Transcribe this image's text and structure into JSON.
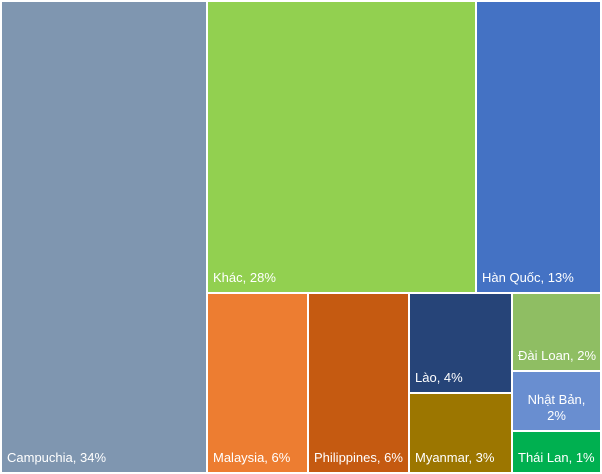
{
  "chart_data": {
    "type": "treemap",
    "title": "",
    "items": [
      {
        "name": "Campuchia",
        "label_text": "Campuchia, 34%",
        "label_lines": [
          "Campuchia, 34%"
        ],
        "value": 34,
        "color": "#7f96b0"
      },
      {
        "name": "Khác",
        "label_text": "Khác, 28%",
        "label_lines": [
          "Khác, 28%"
        ],
        "value": 28,
        "color": "#92d050"
      },
      {
        "name": "Hàn Quốc",
        "label_text": "Hàn Quốc, 13%",
        "label_lines": [
          "Hàn Quốc, 13%"
        ],
        "value": 13,
        "color": "#4472c4"
      },
      {
        "name": "Malaysia",
        "label_text": "Malaysia, 6%",
        "label_lines": [
          "Malaysia, 6%"
        ],
        "value": 6,
        "color": "#ed7d31"
      },
      {
        "name": "Philippines",
        "label_text": "Philippines, 6%",
        "label_lines": [
          "Philippines, 6%"
        ],
        "value": 6,
        "color": "#c55a11"
      },
      {
        "name": "Lào",
        "label_text": "Lào, 4%",
        "label_lines": [
          "Lào, 4%"
        ],
        "value": 4,
        "color": "#264478"
      },
      {
        "name": "Myanmar",
        "label_text": "Myanmar, 3%",
        "label_lines": [
          "Myanmar, 3%"
        ],
        "value": 3,
        "color": "#9c7600"
      },
      {
        "name": "Đài Loan",
        "label_text": "Đài Loan, 2%",
        "label_lines": [
          "Đài Loan, 2%"
        ],
        "value": 2,
        "color": "#8fbe63"
      },
      {
        "name": "Nhật Bản",
        "label_text": "Nhật Bản, 2%",
        "label_lines": [
          "Nhật Bản,",
          "2%"
        ],
        "value": 2,
        "color": "#698ed0"
      },
      {
        "name": "Thái Lan",
        "label_text": "Thái Lan, 1%",
        "label_lines": [
          "Thái Lan, 1%"
        ],
        "value": 1,
        "color": "#00b050"
      }
    ]
  }
}
